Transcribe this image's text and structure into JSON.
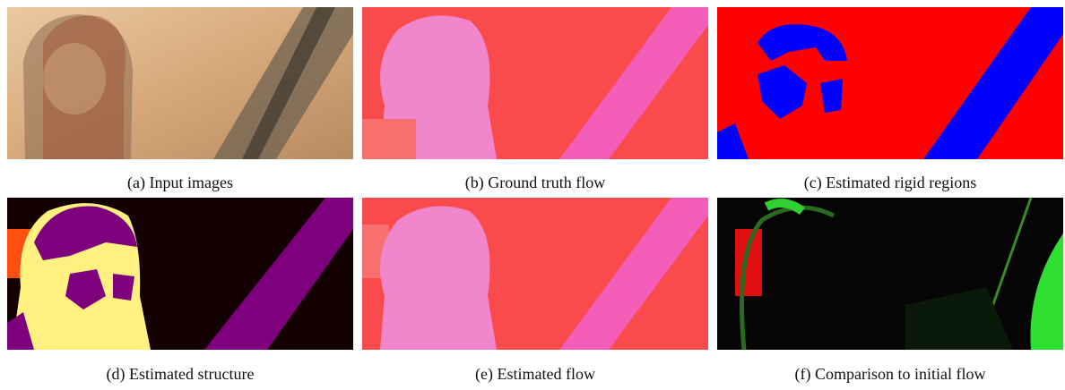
{
  "figure": {
    "panels": [
      {
        "caption": "(a) Input images"
      },
      {
        "caption": "(b) Ground truth flow"
      },
      {
        "caption": "(c) Estimated rigid regions"
      },
      {
        "caption": "(d) Estimated structure"
      },
      {
        "caption": "(e) Estimated flow"
      },
      {
        "caption": "(f) Comparison to initial flow"
      }
    ]
  }
}
